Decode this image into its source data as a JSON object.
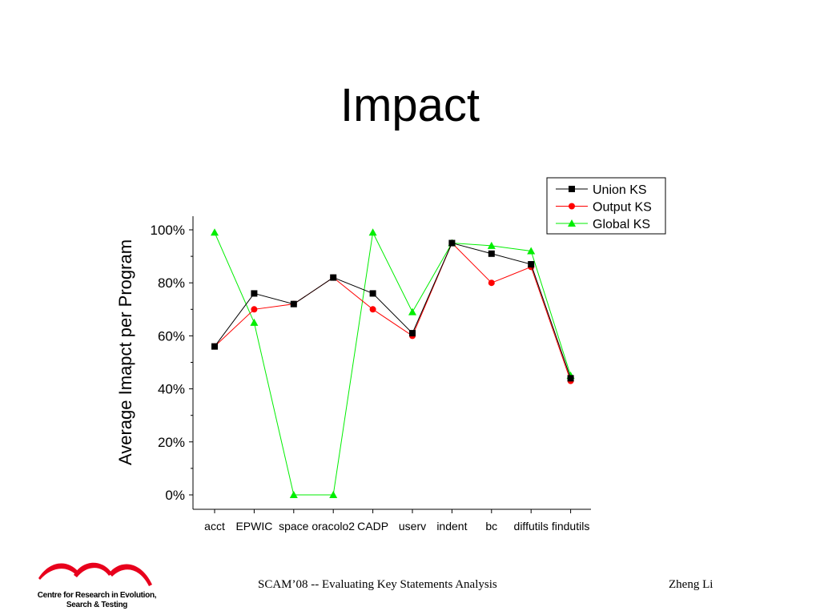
{
  "slide": {
    "title": "Impact",
    "footer_center": "SCAM’08 -- Evaluating Key Statements Analysis",
    "footer_right": "Zheng Li",
    "logo_text_line1": "Centre for Research in Evolution,",
    "logo_text_line2": "Search & Testing"
  },
  "colors": {
    "union": "#000000",
    "output": "#ff0000",
    "global": "#00ee00",
    "logo": "#e8001c"
  },
  "chart_data": {
    "type": "line",
    "title": "",
    "xlabel": "",
    "ylabel": "Average Imapct per Program",
    "categories": [
      "acct",
      "EPWIC",
      "space",
      "oracolo2",
      "CADP",
      "userv",
      "indent",
      "bc",
      "diffutils",
      "findutils"
    ],
    "ylim": [
      0,
      100
    ],
    "yticks": [
      "0%",
      "20%",
      "40%",
      "60%",
      "80%",
      "100%"
    ],
    "grid": false,
    "legend_position": "top-right",
    "series": [
      {
        "name": "Union KS",
        "marker": "square",
        "color": "#000000",
        "values": [
          56,
          76,
          72,
          82,
          76,
          61,
          95,
          91,
          87,
          44
        ]
      },
      {
        "name": "Output KS",
        "marker": "circle",
        "color": "#ff0000",
        "values": [
          56,
          70,
          72,
          82,
          70,
          60,
          95,
          80,
          86,
          43
        ]
      },
      {
        "name": "Global KS",
        "marker": "triangle",
        "color": "#00ee00",
        "values": [
          99,
          65,
          0,
          0,
          99,
          69,
          95,
          94,
          92,
          45
        ]
      }
    ]
  }
}
